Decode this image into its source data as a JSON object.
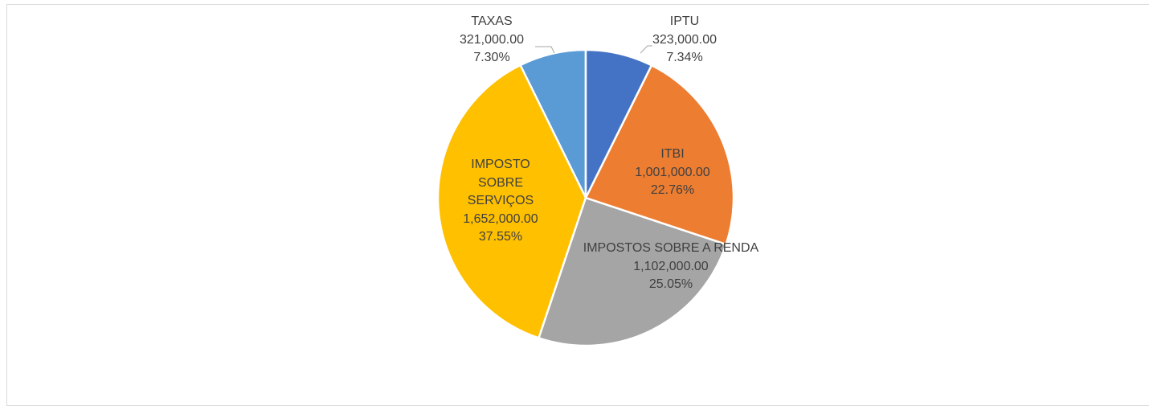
{
  "chart_data": {
    "type": "pie",
    "categories": [
      "IPTU",
      "ITBI",
      "IMPOSTOS SOBRE A RENDA",
      "IMPOSTO SOBRE SERVIÇOS",
      "TAXAS"
    ],
    "values": [
      323000,
      1001000,
      1102000,
      1652000,
      321000
    ],
    "value_labels": [
      "323,000.00",
      "1,001,000.00",
      "1,102,000.00",
      "1,652,000.00",
      "321,000.00"
    ],
    "percent_labels": [
      "7.34%",
      "22.76%",
      "25.05%",
      "37.55%",
      "7.30%"
    ],
    "colors": [
      "#4472c4",
      "#ed7d31",
      "#a5a5a5",
      "#ffc000",
      "#5b9bd5"
    ]
  }
}
